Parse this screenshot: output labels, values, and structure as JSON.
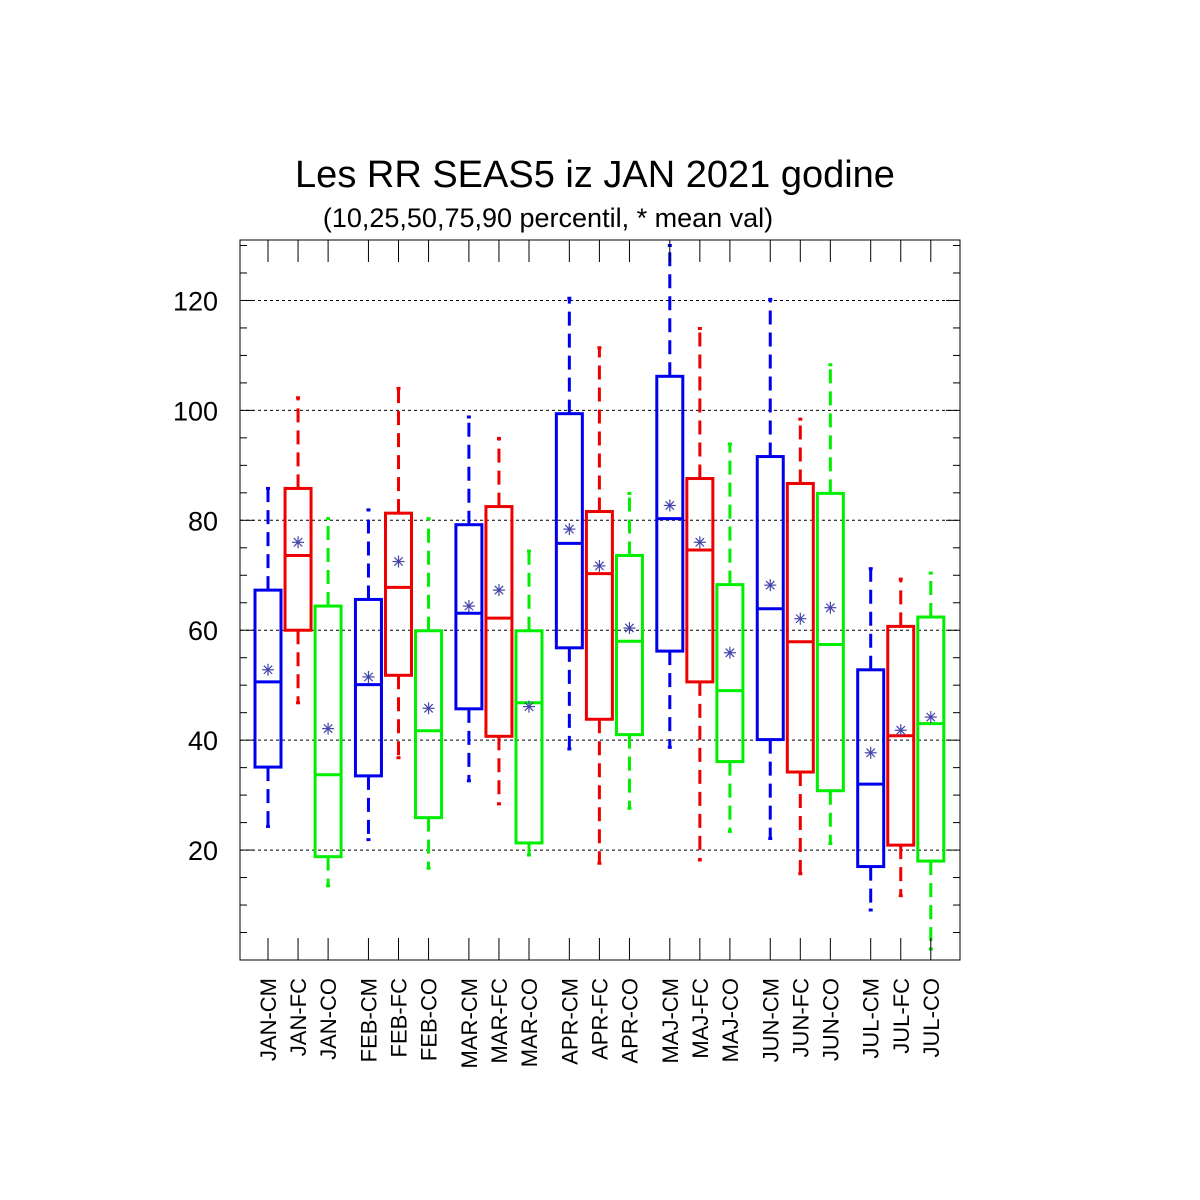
{
  "chart_data": {
    "type": "box",
    "title": "Les RR SEAS5 iz JAN 2021 godine",
    "subtitle": "(10,25,50,75,90 percentil, * mean val)",
    "xlabel": "",
    "ylabel": "",
    "ylim": [
      0,
      131
    ],
    "yticks": [
      20,
      40,
      60,
      80,
      100,
      120
    ],
    "ytick_labels": [
      "20",
      "40",
      "60",
      "80",
      "100",
      "120"
    ],
    "grid": "horizontal dashed at major y ticks",
    "colors": {
      "CM": "#0000ee",
      "FC": "#ee0000",
      "CO": "#00ee00",
      "mean_marker": "#4444aa"
    },
    "groups": [
      "JAN",
      "FEB",
      "MAR",
      "APR",
      "MAJ",
      "JUN",
      "JUL"
    ],
    "boxes": [
      {
        "label": "JAN-CM",
        "color": "CM",
        "p10": 24.3,
        "p25": 35.1,
        "median": 50.6,
        "p75": 67.3,
        "p90": 85.8,
        "mean": 52.8
      },
      {
        "label": "JAN-FC",
        "color": "FC",
        "p10": 46.8,
        "p25": 60.0,
        "median": 73.6,
        "p75": 85.8,
        "p90": 102.3,
        "mean": 76.0
      },
      {
        "label": "JAN-CO",
        "color": "CO",
        "p10": 13.5,
        "p25": 18.8,
        "median": 33.7,
        "p75": 64.4,
        "p90": 80.3,
        "mean": 42.1
      },
      {
        "label": "FEB-CM",
        "color": "CM",
        "p10": 21.9,
        "p25": 33.5,
        "median": 50.1,
        "p75": 65.6,
        "p90": 81.9,
        "mean": 51.5
      },
      {
        "label": "FEB-FC",
        "color": "FC",
        "p10": 36.8,
        "p25": 51.8,
        "median": 67.8,
        "p75": 81.3,
        "p90": 104.0,
        "mean": 72.5
      },
      {
        "label": "FEB-CO",
        "color": "CO",
        "p10": 16.7,
        "p25": 25.9,
        "median": 41.7,
        "p75": 59.9,
        "p90": 80.3,
        "mean": 45.8
      },
      {
        "label": "MAR-CM",
        "color": "CM",
        "p10": 32.6,
        "p25": 45.7,
        "median": 63.1,
        "p75": 79.2,
        "p90": 98.8,
        "mean": 64.4
      },
      {
        "label": "MAR-FC",
        "color": "FC",
        "p10": 28.4,
        "p25": 40.7,
        "median": 62.2,
        "p75": 82.5,
        "p90": 94.9,
        "mean": 67.3
      },
      {
        "label": "MAR-CO",
        "color": "CO",
        "p10": 19.1,
        "p25": 21.3,
        "median": 46.8,
        "p75": 59.9,
        "p90": 74.4,
        "mean": 46.1
      },
      {
        "label": "APR-CM",
        "color": "CM",
        "p10": 38.4,
        "p25": 56.8,
        "median": 75.8,
        "p75": 99.4,
        "p90": 120.4,
        "mean": 78.4
      },
      {
        "label": "APR-FC",
        "color": "FC",
        "p10": 17.6,
        "p25": 43.8,
        "median": 70.3,
        "p75": 81.6,
        "p90": 111.4,
        "mean": 71.7
      },
      {
        "label": "APR-CO",
        "color": "CO",
        "p10": 27.6,
        "p25": 41.0,
        "median": 58.0,
        "p75": 73.6,
        "p90": 84.9,
        "mean": 60.4
      },
      {
        "label": "MAJ-CM",
        "color": "CM",
        "p10": 38.7,
        "p25": 56.2,
        "median": 80.3,
        "p75": 106.2,
        "p90": 130.0,
        "mean": 82.7
      },
      {
        "label": "MAJ-FC",
        "color": "FC",
        "p10": 18.2,
        "p25": 50.6,
        "median": 74.6,
        "p75": 87.6,
        "p90": 114.9,
        "mean": 76.0
      },
      {
        "label": "MAJ-CO",
        "color": "CO",
        "p10": 23.4,
        "p25": 36.1,
        "median": 49.0,
        "p75": 68.3,
        "p90": 93.9,
        "mean": 55.9
      },
      {
        "label": "JUN-CM",
        "color": "CM",
        "p10": 22.1,
        "p25": 40.1,
        "median": 63.9,
        "p75": 91.6,
        "p90": 120.2,
        "mean": 68.2
      },
      {
        "label": "JUN-FC",
        "color": "FC",
        "p10": 15.7,
        "p25": 34.2,
        "median": 57.9,
        "p75": 86.7,
        "p90": 98.4,
        "mean": 62.1
      },
      {
        "label": "JUN-CO",
        "color": "CO",
        "p10": 21.2,
        "p25": 30.8,
        "median": 57.4,
        "p75": 84.9,
        "p90": 108.3,
        "mean": 64.1
      },
      {
        "label": "JUL-CM",
        "color": "CM",
        "p10": 9.1,
        "p25": 17.0,
        "median": 32.0,
        "p75": 52.8,
        "p90": 71.2,
        "mean": 37.7
      },
      {
        "label": "JUL-FC",
        "color": "FC",
        "p10": 11.7,
        "p25": 20.9,
        "median": 40.8,
        "p75": 60.7,
        "p90": 69.3,
        "mean": 41.8
      },
      {
        "label": "JUL-CO",
        "color": "CO",
        "p10": 2.0,
        "p25": 18.0,
        "median": 43.0,
        "p75": 62.4,
        "p90": 70.4,
        "mean": 44.2
      }
    ]
  }
}
